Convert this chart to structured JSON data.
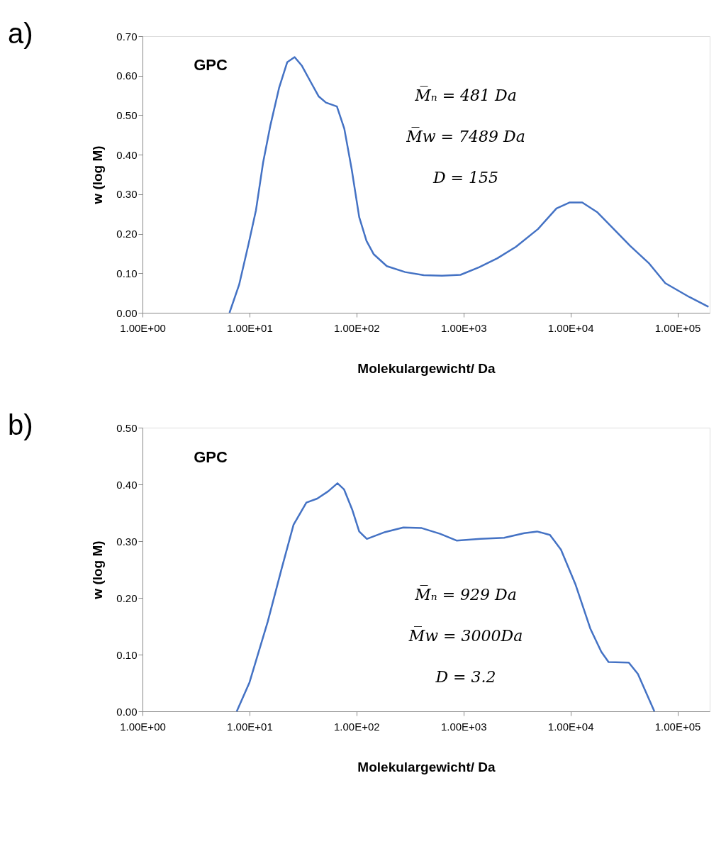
{
  "chart_data": [
    {
      "type": "line",
      "xlabel": "Molekulargewicht/ Da",
      "ylabel": "w (log M)",
      "log": "x",
      "grid": false,
      "annotations": [
        "a)",
        "GPC",
        "M̅ₙ = 481 Da",
        "M̅w = 7489 Da",
        "D = 155"
      ],
      "xlim": [
        1,
        200000
      ],
      "ylim": [
        0,
        0.7
      ],
      "xticks": [
        {
          "value": 1,
          "label": "1.00E+00"
        },
        {
          "value": 10,
          "label": "1.00E+01"
        },
        {
          "value": 100,
          "label": "1.00E+02"
        },
        {
          "value": 1000,
          "label": "1.00E+03"
        },
        {
          "value": 10000,
          "label": "1.00E+04"
        },
        {
          "value": 100000,
          "label": "1.00E+05"
        }
      ],
      "yticks": [
        {
          "value": 0,
          "label": "0.00"
        },
        {
          "value": 0.1,
          "label": "0.10"
        },
        {
          "value": 0.2,
          "label": "0.20"
        },
        {
          "value": 0.3,
          "label": "0.30"
        },
        {
          "value": 0.4,
          "label": "0.40"
        },
        {
          "value": 0.5,
          "label": "0.50"
        },
        {
          "value": 0.6,
          "label": "0.60"
        },
        {
          "value": 0.7,
          "label": "0.70"
        }
      ],
      "series": [
        {
          "color": "#4472c4",
          "x": [
            6.5,
            8.0,
            9.8,
            11.5,
            13.4,
            15.7,
            18.9,
            22.5,
            26.4,
            30.9,
            37.7,
            44.2,
            51.8,
            65.6,
            76.9,
            90.2,
            106,
            124,
            145,
            192,
            285,
            425,
            631,
            938,
            1396,
            2075,
            3090,
            4977,
            7396,
            9772,
            12882,
            17701,
            24322,
            36224,
            53827,
            76913,
            128825,
            195000
          ],
          "values": [
            0,
            0.071,
            0.174,
            0.26,
            0.38,
            0.475,
            0.569,
            0.634,
            0.647,
            0.625,
            0.582,
            0.548,
            0.532,
            0.522,
            0.466,
            0.363,
            0.242,
            0.182,
            0.148,
            0.118,
            0.103,
            0.095,
            0.094,
            0.096,
            0.115,
            0.138,
            0.167,
            0.212,
            0.264,
            0.279,
            0.279,
            0.255,
            0.217,
            0.169,
            0.126,
            0.075,
            0.04,
            0.015
          ]
        }
      ]
    },
    {
      "type": "line",
      "xlabel": "Molekulargewicht/ Da",
      "ylabel": "w (log M)",
      "log": "x",
      "grid": false,
      "annotations": [
        "b)",
        "GPC",
        "M̅ₙ = 929 Da",
        "M̅w = 3000Da",
        "D = 3.2"
      ],
      "xlim": [
        1,
        200000
      ],
      "ylim": [
        0,
        0.5
      ],
      "xticks": [
        {
          "value": 1,
          "label": "1.00E+00"
        },
        {
          "value": 10,
          "label": "1.00E+01"
        },
        {
          "value": 100,
          "label": "1.00E+02"
        },
        {
          "value": 1000,
          "label": "1.00E+03"
        },
        {
          "value": 10000,
          "label": "1.00E+04"
        },
        {
          "value": 100000,
          "label": "1.00E+05"
        }
      ],
      "yticks": [
        {
          "value": 0,
          "label": "0.00"
        },
        {
          "value": 0.1,
          "label": "0.10"
        },
        {
          "value": 0.2,
          "label": "0.20"
        },
        {
          "value": 0.3,
          "label": "0.30"
        },
        {
          "value": 0.4,
          "label": "0.40"
        },
        {
          "value": 0.5,
          "label": "0.50"
        }
      ],
      "series": [
        {
          "color": "#4472c4",
          "x": [
            7.6,
            10,
            14.8,
            20,
            25.8,
            34,
            43,
            54.5,
            66.4,
            76.6,
            91,
            106,
            125,
            185,
            274,
            407,
            604,
            861,
            1439,
            2399,
            3698,
            4875,
            6427,
            8147,
            11169,
            15311,
            19409,
            22699,
            35075,
            42658,
            60814
          ],
          "values": [
            0,
            0.051,
            0.158,
            0.252,
            0.329,
            0.368,
            0.375,
            0.388,
            0.402,
            0.391,
            0.356,
            0.317,
            0.304,
            0.316,
            0.324,
            0.323,
            0.313,
            0.301,
            0.304,
            0.306,
            0.314,
            0.317,
            0.311,
            0.285,
            0.223,
            0.146,
            0.105,
            0.087,
            0.086,
            0.066,
            0
          ]
        }
      ]
    }
  ]
}
